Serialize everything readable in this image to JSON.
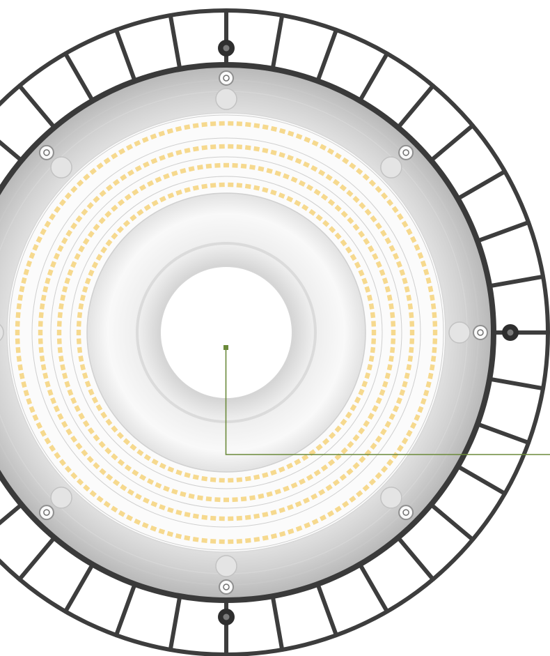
{
  "image": {
    "subject": "high-bay-led-light-fixture",
    "view": "bottom"
  },
  "colors": {
    "background": "#ffffff",
    "frame_stroke": "#3d3d3d",
    "frame_fill": "#ffffff",
    "housing_rim": "#3a3a3a",
    "housing_light": "#f4f4f4",
    "housing_mid": "#d9d9d9",
    "housing_shadow": "#bdbdbd",
    "led": "#f6d98e",
    "led_board": "#fbfbfb",
    "ring_line": "#cfcfcf",
    "center_hole": "#ffffff",
    "callout": "#6b8a3a"
  },
  "fixture": {
    "led_rings": 4,
    "mounting_lugs": 3,
    "housing_screws": 8,
    "frame_segments": 36
  },
  "callout": {
    "has_label_text": false
  }
}
